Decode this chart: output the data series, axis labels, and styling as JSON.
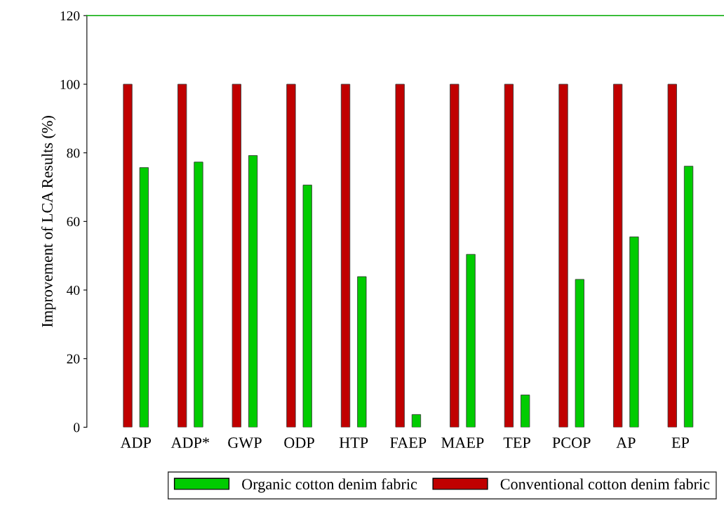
{
  "chart_data": {
    "type": "bar",
    "ylabel": "Improvement of LCA Results (%)",
    "categories": [
      "ADP",
      "ADP*",
      "GWP",
      "ODP",
      "HTP",
      "FAEP",
      "MAEP",
      "TEP",
      "PCOP",
      "AP",
      "EP"
    ],
    "series": [
      {
        "name": "Conventional cotton denim fabric",
        "color": "#c00000",
        "values": [
          100,
          100,
          100,
          100,
          100,
          100,
          100,
          100,
          100,
          100,
          100
        ]
      },
      {
        "name": "Organic cotton denim fabric",
        "color": "#00cc00",
        "values": [
          75.7,
          77.3,
          79.2,
          70.6,
          43.9,
          3.7,
          50.4,
          9.4,
          43.1,
          55.5,
          76.1
        ]
      }
    ],
    "ylim": [
      0,
      120
    ],
    "yticks": [
      0,
      20,
      40,
      60,
      80,
      100,
      120
    ],
    "ref_lines": [
      {
        "axis": "y",
        "value": 120,
        "color": "#00aa00"
      }
    ],
    "grid": false,
    "legend": "bottom"
  }
}
